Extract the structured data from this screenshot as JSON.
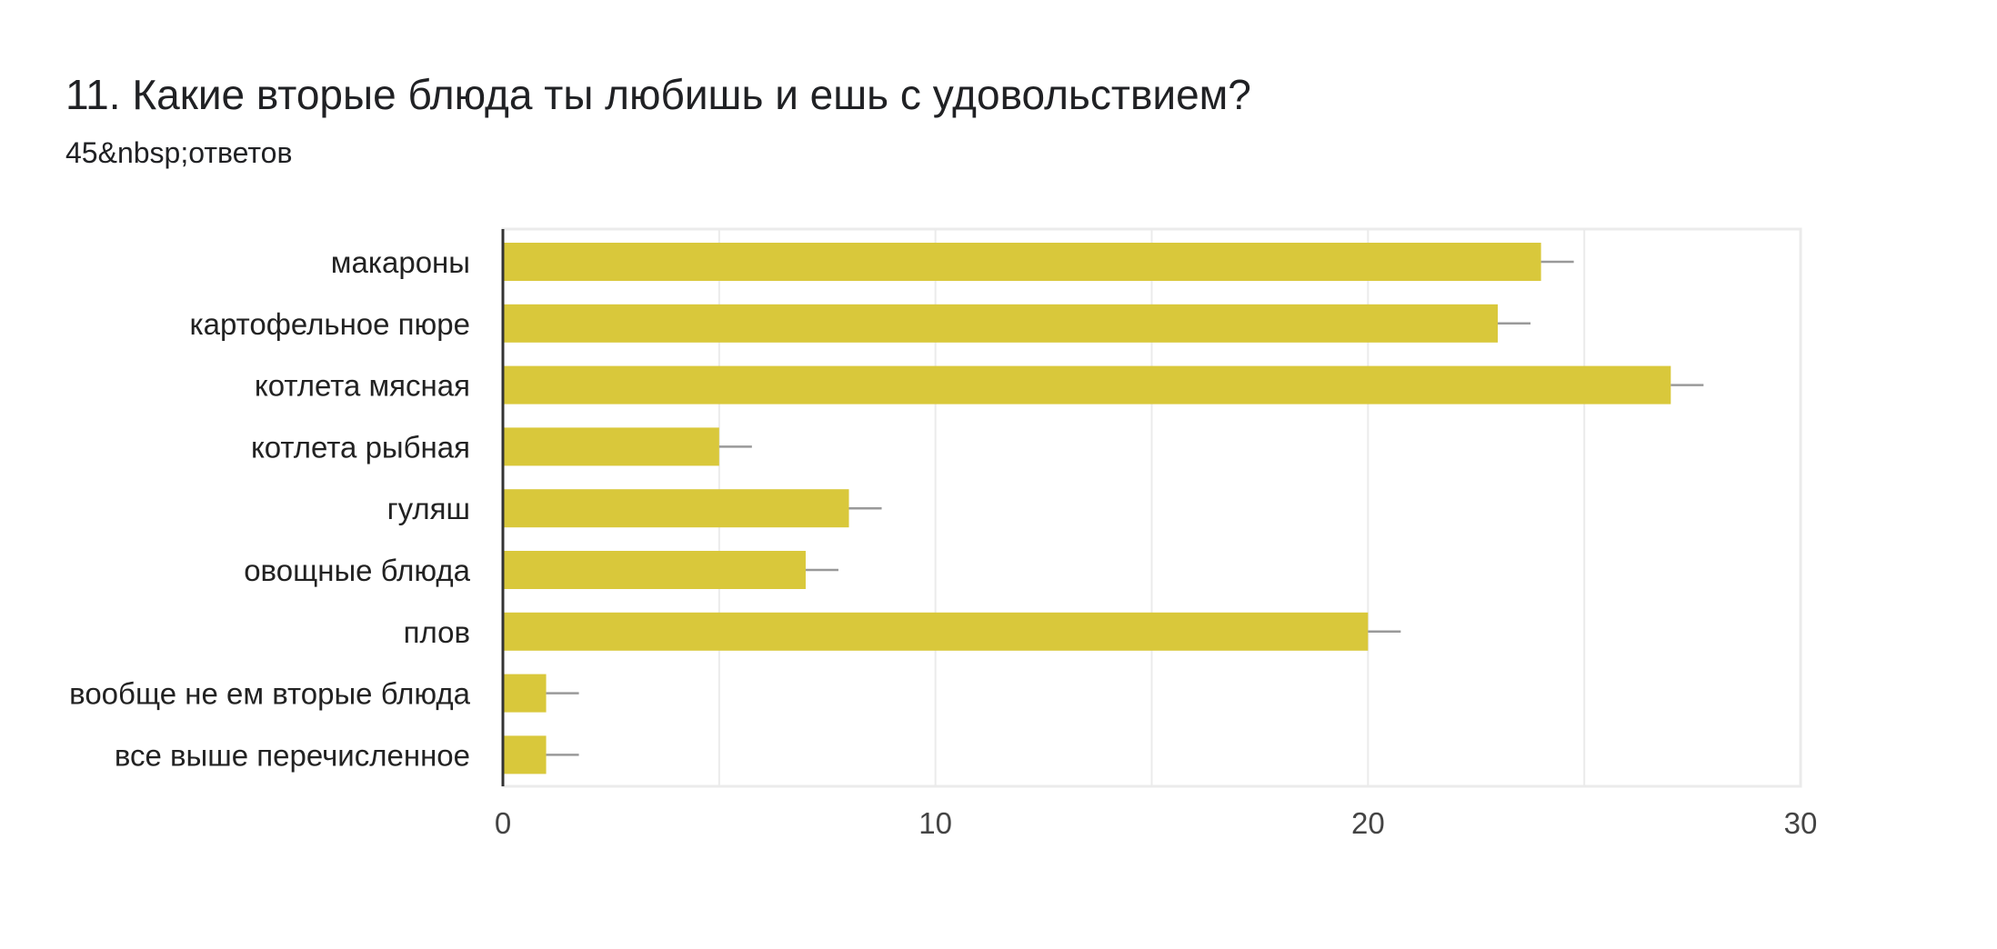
{
  "header": {
    "title": "11. Какие вторые блюда ты любишь и ешь с удовольствием?",
    "responses": "45&nbsp;ответов"
  },
  "colors": {
    "bar": "#d9c83b",
    "error_bar": "#999999",
    "grid": "#ebebeb",
    "axis": "#333333"
  },
  "chart_data": {
    "type": "bar",
    "orientation": "horizontal",
    "categories": [
      "макароны",
      "картофельное пюре",
      "котлета мясная",
      "котлета рыбная",
      "гуляш",
      "овощные блюда",
      "плов",
      "вообще не ем вторые блюда",
      "все выше перечисленное"
    ],
    "values": [
      24,
      23,
      27,
      5,
      8,
      7,
      20,
      1,
      1
    ],
    "xlim": [
      0,
      30
    ],
    "xticks": [
      0,
      10,
      20,
      30
    ],
    "grid": true,
    "error_bars": true,
    "title": "",
    "xlabel": "",
    "ylabel": ""
  }
}
